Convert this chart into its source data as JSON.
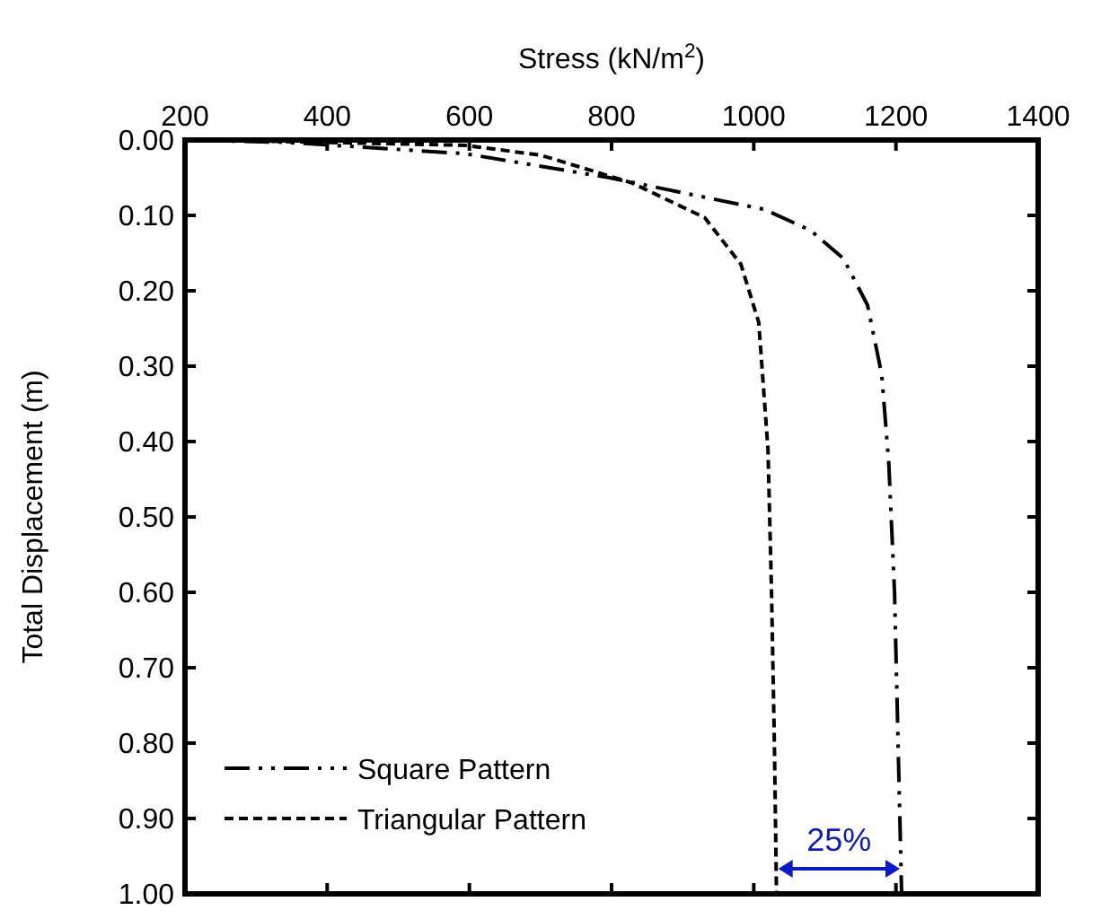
{
  "chart_data": {
    "type": "line",
    "xlabel": "Stress (kN/m$^{2}$)",
    "ylabel": "Total Displacement (m)",
    "xlim": [
      200,
      1400
    ],
    "xticks": [
      200,
      400,
      600,
      800,
      1000,
      1200,
      1400
    ],
    "ylim": [
      1.0,
      0.0
    ],
    "yticks": [
      {
        "value": 0,
        "label": "0.00"
      },
      {
        "value": 0.1,
        "label": "0.10"
      },
      {
        "value": 0.2,
        "label": "0.20"
      },
      {
        "value": 0.3,
        "label": "0.30"
      },
      {
        "value": 0.4,
        "label": "0.40"
      },
      {
        "value": 0.5,
        "label": "0.50"
      },
      {
        "value": 0.6,
        "label": "0.60"
      },
      {
        "value": 0.7,
        "label": "0.70"
      },
      {
        "value": 0.8,
        "label": "0.80"
      },
      {
        "value": 0.9,
        "label": "0.90"
      },
      {
        "value": 1.0,
        "label": "1.00"
      }
    ],
    "series": [
      {
        "name": "Square Pattern",
        "color": "#000000",
        "line_style": "dashdotdot",
        "x": [
          200,
          340,
          593,
          797,
          900,
          1015,
          1080,
          1126,
          1160,
          1180,
          1190,
          1198,
          1203,
          1208
        ],
        "values": [
          0.0,
          0.003,
          0.018,
          0.05,
          0.07,
          0.092,
          0.12,
          0.157,
          0.219,
          0.311,
          0.43,
          0.6,
          0.8,
          1.0
        ]
      },
      {
        "name": "Triangular Pattern",
        "color": "#000000",
        "line_style": "dashed",
        "x": [
          200,
          340,
          593,
          700,
          829,
          931,
          982,
          1007,
          1020,
          1025,
          1029,
          1032
        ],
        "values": [
          0.0,
          0.002,
          0.007,
          0.02,
          0.057,
          0.103,
          0.165,
          0.242,
          0.41,
          0.6,
          0.8,
          1.0
        ]
      }
    ],
    "legend": "bottom left",
    "annotations": [
      "25%"
    ]
  }
}
